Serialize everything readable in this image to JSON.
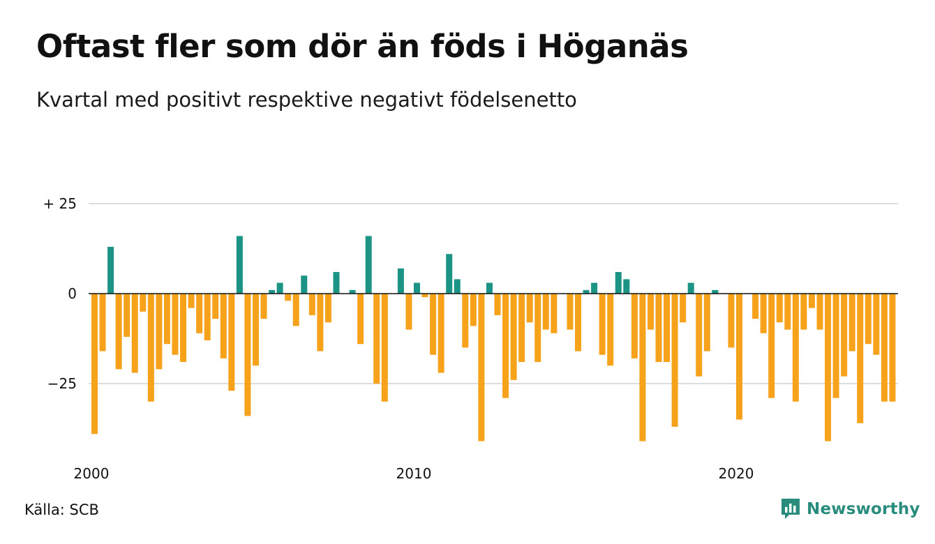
{
  "header": {
    "title": "Oftast fler som dör än föds i Höganäs",
    "subtitle": "Kvartal med positivt respektive negativt födelsenetto"
  },
  "footer": {
    "source": "Källa: SCB",
    "brand": "Newsworthy",
    "brand_icon": "newsworthy-logo-icon"
  },
  "colors": {
    "positive": "#1b9485",
    "negative": "#f7a21b",
    "grid": "#dddddd",
    "zero_line": "#111111",
    "brand": "#2a8c7c"
  },
  "chart_data": {
    "type": "bar",
    "start_year": 2000,
    "periods_per_year": 4,
    "ylim": [
      -47,
      30
    ],
    "y_ticks": [
      25,
      0,
      -25
    ],
    "y_tick_labels": [
      "+ 25",
      "0",
      "−25"
    ],
    "x_ticks": [
      2000,
      2010,
      2020
    ],
    "x_tick_labels": [
      "2000",
      "2010",
      "2020"
    ],
    "grid": true,
    "values": [
      -39,
      -16,
      13,
      -21,
      -12,
      -22,
      -5,
      -30,
      -21,
      -14,
      -17,
      -19,
      -4,
      -11,
      -13,
      -7,
      -18,
      -27,
      16,
      -34,
      -20,
      -7,
      1,
      3,
      -2,
      -9,
      5,
      -6,
      -16,
      -8,
      6,
      0,
      1,
      -14,
      16,
      -25,
      -30,
      0,
      7,
      -10,
      3,
      -1,
      -17,
      -22,
      11,
      4,
      -15,
      -9,
      -41,
      3,
      -6,
      -29,
      -24,
      -19,
      -8,
      -19,
      -10,
      -11,
      0,
      -10,
      -16,
      1,
      3,
      -17,
      -20,
      6,
      4,
      -18,
      -41,
      -10,
      -19,
      -19,
      -37,
      -8,
      3,
      -23,
      -16,
      1,
      0,
      -15,
      -35,
      0,
      -7,
      -11,
      -29,
      -8,
      -10,
      -30,
      -10,
      -4,
      -10,
      -41,
      -29,
      -23,
      -16,
      -36,
      -14,
      -17,
      -30,
      -30
    ]
  }
}
